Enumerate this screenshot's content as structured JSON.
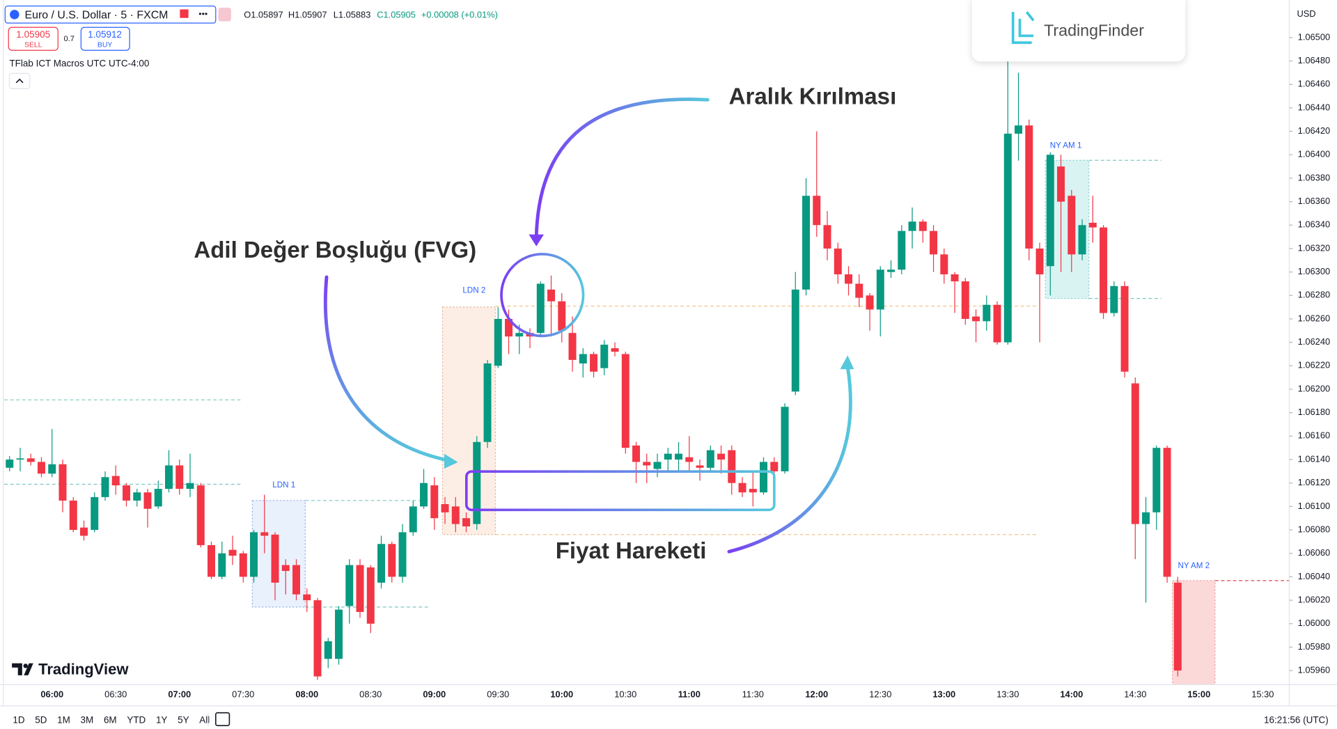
{
  "header": {
    "symbol": "Euro / U.S. Dollar · 5 · FXCM",
    "open": "O1.05897",
    "high": "H1.05907",
    "low": "L1.05883",
    "close": "C1.05905",
    "change": "+0.00008 (+0.01%)",
    "sell_price": "1.05905",
    "sell": "SELL",
    "spread": "0.7",
    "buy_price": "1.05912",
    "buy": "BUY",
    "indicator": "TFlab ICT Macros UTC UTC-4:00",
    "currency": "USD",
    "brand": "TradingFinder",
    "logo": "TradingView"
  },
  "annotations": {
    "range_break": "Aralık Kırılması",
    "fvg": "Adil Değer Boşluğu (FVG)",
    "price_action": "Fiyat Hareketi"
  },
  "sessions": [
    "LDN 1",
    "LDN 2",
    "NY AM 1",
    "NY AM 2"
  ],
  "toolbar": {
    "periods": [
      "1D",
      "5D",
      "1M",
      "3M",
      "6M",
      "YTD",
      "1Y",
      "5Y",
      "All"
    ],
    "clock": "16:21:56 (UTC)"
  },
  "chart_data": {
    "type": "candlestick",
    "up_color": "#089981",
    "down_color": "#f23645",
    "categories": [
      null,
      null,
      null,
      null,
      "06:00",
      null,
      null,
      null,
      null,
      null,
      "06:30",
      null,
      null,
      null,
      null,
      null,
      "07:00",
      null,
      null,
      null,
      null,
      null,
      "07:30",
      null,
      null,
      null,
      null,
      null,
      "08:00",
      null,
      null,
      null,
      null,
      null,
      "08:30",
      null,
      null,
      null,
      null,
      null,
      "09:00",
      null,
      null,
      null,
      null,
      null,
      "09:30",
      null,
      null,
      null,
      null,
      null,
      "10:00",
      null,
      null,
      null,
      null,
      null,
      "10:30",
      null,
      null,
      null,
      null,
      null,
      "11:00",
      null,
      null,
      null,
      null,
      null,
      "11:30",
      null,
      null,
      null,
      null,
      null,
      "12:00",
      null,
      null,
      null,
      null,
      null,
      "12:30",
      null,
      null,
      null,
      null,
      null,
      "13:00",
      null,
      null,
      null,
      null,
      null,
      "13:30",
      null,
      null,
      null,
      null,
      null,
      "14:00",
      null,
      null,
      null,
      null,
      null,
      "14:30",
      null,
      null,
      null,
      null,
      null,
      "15:00",
      null,
      null,
      null,
      null,
      null,
      "15:30",
      null,
      null
    ],
    "open": [
      1.06133,
      1.0614,
      1.06141,
      1.06138,
      1.06128,
      1.06136,
      1.06105,
      1.06082,
      1.0608,
      1.06108,
      1.06126,
      1.06118,
      1.06105,
      1.06112,
      1.061,
      1.06115,
      1.06135,
      1.06115,
      1.06118,
      1.06067,
      1.0604,
      1.06063,
      1.0606,
      1.0604,
      1.06078,
      1.06076,
      1.0605,
      1.0605,
      1.06025,
      1.0602,
      1.0597,
      1.0597,
      1.06015,
      1.0605,
      1.06048,
      1.06035,
      1.06068,
      1.0604,
      1.06078,
      1.061,
      1.06118,
      1.06102,
      1.061,
      1.0609,
      1.06085,
      1.06155,
      1.0622,
      1.0626,
      1.06245,
      1.06248,
      1.06248,
      1.06285,
      1.06275,
      1.06248,
      1.06222,
      1.0623,
      1.06218,
      1.06235,
      1.0623,
      1.06152,
      1.06138,
      1.06132,
      1.0614,
      1.0614,
      1.06142,
      1.06135,
      1.06133,
      1.06145,
      1.06148,
      1.0612,
      1.06115,
      1.06112,
      1.06138,
      1.0613,
      1.06198,
      1.06285,
      1.06365,
      1.0634,
      1.0632,
      1.06298,
      1.0629,
      1.0628,
      1.06268,
      1.063,
      1.06302,
      1.06335,
      1.06343,
      1.06335,
      1.06315,
      1.06298,
      1.06292,
      1.06262,
      1.06258,
      1.06272,
      1.0624,
      1.06418,
      1.06425,
      1.0632,
      1.06305,
      1.0639,
      1.06365,
      1.06315,
      1.06342,
      1.06338,
      1.06265,
      1.06288,
      1.06205,
      1.06085,
      1.06095,
      1.0615,
      1.06035,
      null,
      null,
      null,
      null,
      null,
      null,
      null,
      null,
      null,
      null
    ],
    "high": [
      1.06143,
      1.0615,
      1.06145,
      1.06142,
      1.06166,
      1.0614,
      1.06108,
      1.06088,
      1.06112,
      1.0613,
      1.06135,
      1.0612,
      1.06115,
      1.06115,
      1.06122,
      1.06148,
      1.0614,
      1.06145,
      1.0612,
      1.0607,
      1.0607,
      1.06075,
      1.06062,
      1.0608,
      1.0611,
      1.06078,
      1.06055,
      1.06055,
      1.0603,
      1.06022,
      1.05988,
      1.06015,
      1.06055,
      1.06055,
      1.0605,
      1.06075,
      1.0607,
      1.06085,
      1.06105,
      1.06132,
      1.06125,
      1.06108,
      1.06108,
      1.06095,
      1.0616,
      1.06225,
      1.0627,
      1.06268,
      1.06255,
      1.06252,
      1.06292,
      1.06297,
      1.06282,
      1.06262,
      1.06235,
      1.06232,
      1.06242,
      1.0624,
      1.06232,
      1.06155,
      1.06145,
      1.06145,
      1.0615,
      1.06155,
      1.0616,
      1.0614,
      1.06152,
      1.06152,
      1.06152,
      1.06125,
      1.0613,
      1.06142,
      1.06142,
      1.06188,
      1.063,
      1.0638,
      1.0642,
      1.06352,
      1.06325,
      1.06305,
      1.06298,
      1.06282,
      1.06305,
      1.0631,
      1.0634,
      1.06355,
      1.06345,
      1.0634,
      1.0632,
      1.063,
      1.06295,
      1.06268,
      1.0628,
      1.06275,
      1.0648,
      1.0647,
      1.0643,
      1.06325,
      1.06402,
      1.064,
      1.0637,
      1.06345,
      1.06365,
      1.0634,
      1.06292,
      1.06292,
      1.0621,
      1.06108,
      1.06152,
      1.06152,
      1.0604,
      null,
      null,
      null,
      null,
      null,
      null,
      null,
      null,
      null,
      null
    ],
    "low": [
      1.0613,
      1.0613,
      1.06135,
      1.06125,
      1.06125,
      1.06095,
      1.06078,
      1.06071,
      1.06078,
      1.06105,
      1.0611,
      1.061,
      1.061,
      1.06082,
      1.06098,
      1.06112,
      1.0611,
      1.06108,
      1.06065,
      1.06038,
      1.06038,
      1.0605,
      1.06035,
      1.06035,
      1.0606,
      1.0602,
      1.06025,
      1.0602,
      1.0601,
      1.05952,
      1.05962,
      1.05965,
      1.06,
      1.06005,
      1.05992,
      1.0603,
      1.06035,
      1.06035,
      1.06075,
      1.06098,
      1.0608,
      1.06085,
      1.06078,
      1.06078,
      1.0608,
      1.0615,
      1.06218,
      1.0623,
      1.0623,
      1.06235,
      1.06245,
      1.06245,
      1.0624,
      1.06215,
      1.0621,
      1.0621,
      1.06212,
      1.06228,
      1.06145,
      1.0612,
      1.0612,
      1.06125,
      1.0613,
      1.0613,
      1.0613,
      1.06122,
      1.0613,
      1.06128,
      1.0611,
      1.06108,
      1.061,
      1.0611,
      1.06125,
      1.06128,
      1.06195,
      1.0628,
      1.0633,
      1.0631,
      1.0629,
      1.0628,
      1.0627,
      1.0625,
      1.06245,
      1.06295,
      1.06298,
      1.0632,
      1.06325,
      1.063,
      1.0629,
      1.06265,
      1.06255,
      1.0624,
      1.0625,
      1.06238,
      1.06238,
      1.06395,
      1.0631,
      1.0624,
      1.0628,
      1.063,
      1.063,
      1.0631,
      1.06325,
      1.0626,
      1.06262,
      1.0621,
      1.06055,
      1.06018,
      1.0608,
      1.06035,
      1.05955,
      null,
      null,
      null,
      null,
      null,
      null,
      null,
      null,
      null,
      null
    ],
    "close": [
      1.0614,
      1.06141,
      1.06138,
      1.06128,
      1.06136,
      1.06105,
      1.0608,
      1.06075,
      1.06108,
      1.06125,
      1.06118,
      1.06105,
      1.06112,
      1.06098,
      1.06115,
      1.06135,
      1.06115,
      1.0612,
      1.06067,
      1.0604,
      1.0606,
      1.06058,
      1.0604,
      1.06078,
      1.06075,
      1.06035,
      1.06045,
      1.06025,
      1.0602,
      1.05955,
      1.05985,
      1.06012,
      1.0605,
      1.0601,
      1.06,
      1.06068,
      1.0604,
      1.06078,
      1.061,
      1.0612,
      1.0609,
      1.06095,
      1.06085,
      1.06083,
      1.06155,
      1.06222,
      1.0626,
      1.06245,
      1.06248,
      1.06245,
      1.0629,
      1.06275,
      1.0625,
      1.06225,
      1.0623,
      1.06215,
      1.06238,
      1.06232,
      1.0615,
      1.06138,
      1.06135,
      1.06138,
      1.06145,
      1.06145,
      1.06138,
      1.06133,
      1.06148,
      1.0614,
      1.0612,
      1.06112,
      1.06112,
      1.06138,
      1.0613,
      1.06185,
      1.06285,
      1.06365,
      1.0634,
      1.0632,
      1.06298,
      1.0629,
      1.06278,
      1.06268,
      1.06302,
      1.06302,
      1.06335,
      1.06343,
      1.06335,
      1.06315,
      1.06298,
      1.06292,
      1.0626,
      1.06258,
      1.06272,
      1.0624,
      1.06418,
      1.06425,
      1.0632,
      1.06298,
      1.064,
      1.0636,
      1.06315,
      1.0634,
      1.06338,
      1.06265,
      1.06288,
      1.06215,
      1.06085,
      1.06095,
      1.0615,
      1.0604,
      1.0596,
      null,
      null,
      null,
      null,
      null,
      null,
      null,
      null,
      null,
      null
    ],
    "ylim": [
      1.05948,
      1.06532
    ],
    "yticks": [
      {
        "value": 1.065,
        "label": "1.06500"
      },
      {
        "value": 1.0648,
        "label": "1.06480"
      },
      {
        "value": 1.0646,
        "label": "1.06460"
      },
      {
        "value": 1.0644,
        "label": "1.06440"
      },
      {
        "value": 1.0642,
        "label": "1.06420"
      },
      {
        "value": 1.064,
        "label": "1.06400"
      },
      {
        "value": 1.0638,
        "label": "1.06380"
      },
      {
        "value": 1.0636,
        "label": "1.06360"
      },
      {
        "value": 1.0634,
        "label": "1.06340"
      },
      {
        "value": 1.0632,
        "label": "1.06320"
      },
      {
        "value": 1.063,
        "label": "1.06300"
      },
      {
        "value": 1.0628,
        "label": "1.06280"
      },
      {
        "value": 1.0626,
        "label": "1.06260"
      },
      {
        "value": 1.0624,
        "label": "1.06240"
      },
      {
        "value": 1.0622,
        "label": "1.06220"
      },
      {
        "value": 1.062,
        "label": "1.06200"
      },
      {
        "value": 1.0618,
        "label": "1.06180"
      },
      {
        "value": 1.0616,
        "label": "1.06160"
      },
      {
        "value": 1.0614,
        "label": "1.06140"
      },
      {
        "value": 1.0612,
        "label": "1.06120"
      },
      {
        "value": 1.061,
        "label": "1.06100"
      },
      {
        "value": 1.0608,
        "label": "1.06080"
      },
      {
        "value": 1.0606,
        "label": "1.06060"
      },
      {
        "value": 1.0604,
        "label": "1.06040"
      },
      {
        "value": 1.0602,
        "label": "1.06020"
      },
      {
        "value": 1.06,
        "label": "1.06000"
      },
      {
        "value": 1.0598,
        "label": "1.05980"
      },
      {
        "value": 1.0596,
        "label": "1.05960"
      }
    ]
  }
}
